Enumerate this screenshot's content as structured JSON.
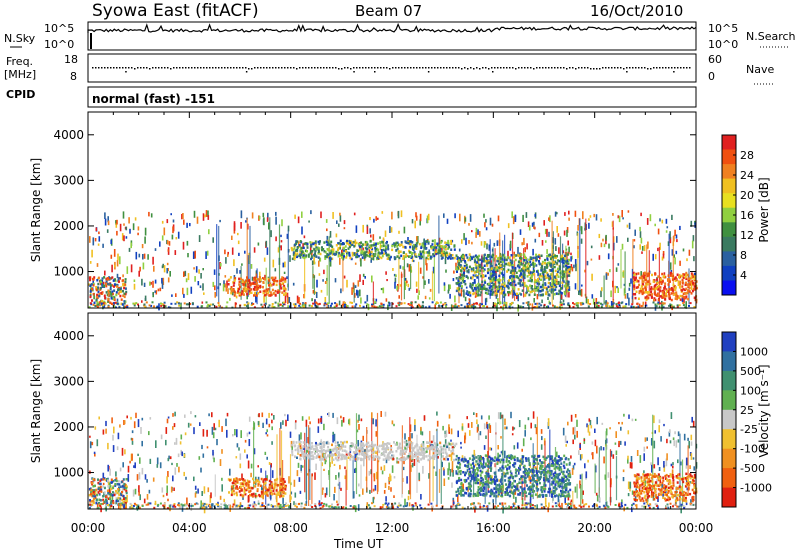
{
  "header": {
    "station": "Syowa East (fitACF)",
    "beam": "Beam 07",
    "date": "16/Oct/2010"
  },
  "panels": {
    "nsky_label": "N.Sky",
    "nsearch_label": "N.Search",
    "freq_label_line1": "Freq.",
    "freq_label_line2": "[MHz]",
    "nave_label": "Nave",
    "cpid_label": "CPID",
    "cpid_value": "normal (fast) -151",
    "noise_ticks": [
      "10^5",
      "10^0"
    ],
    "freq_ticks": [
      "18",
      "8"
    ],
    "nave_ticks": [
      "60",
      "0"
    ]
  },
  "chart_data": [
    {
      "type": "heatmap",
      "quantity": "Power",
      "ylabel": "Slant Range [km]",
      "ylim": [
        200,
        4500
      ],
      "y_ticks": [
        "4000",
        "3000",
        "2000",
        "1000"
      ],
      "x_ticks": [
        "00:00",
        "04:00",
        "08:00",
        "12:00",
        "16:00",
        "20:00",
        "00:00"
      ],
      "colorbar_label": "Power [dB]",
      "colorbar_ticks": [
        "28",
        "24",
        "20",
        "16",
        "12",
        "8",
        "4"
      ],
      "colorbar_colors": [
        "#e02020",
        "#f05010",
        "#f08020",
        "#f0c020",
        "#e8e020",
        "#90d040",
        "#409040",
        "#3a7a60",
        "#2a60a0",
        "#1040c0",
        "#0a10f0"
      ],
      "echo_regions": [
        {
          "t": [
            0.0,
            1.5
          ],
          "r": [
            300,
            900
          ],
          "level": "mixed"
        },
        {
          "t": [
            5.5,
            7.8
          ],
          "r": [
            500,
            900
          ],
          "level": "high"
        },
        {
          "t": [
            8.0,
            14.5
          ],
          "r": [
            1300,
            1700
          ],
          "level": "medium"
        },
        {
          "t": [
            14.5,
            19.0
          ],
          "r": [
            500,
            1400
          ],
          "level": "medium"
        },
        {
          "t": [
            21.5,
            24.0
          ],
          "r": [
            400,
            1000
          ],
          "level": "high"
        }
      ]
    },
    {
      "type": "heatmap",
      "quantity": "Velocity",
      "ylabel": "Slant Range [km]",
      "xlabel": "Time UT",
      "ylim": [
        200,
        4500
      ],
      "y_ticks": [
        "4000",
        "3000",
        "2000",
        "1000"
      ],
      "x_ticks": [
        "00:00",
        "04:00",
        "08:00",
        "12:00",
        "16:00",
        "20:00",
        "00:00"
      ],
      "colorbar_label": "Velocity [m s⁻¹]",
      "colorbar_ticks": [
        "1000",
        "500",
        "100",
        "25",
        "-25",
        "-100",
        "-500",
        "-1000"
      ],
      "colorbar_colors": [
        "#2040c0",
        "#3070a0",
        "#409070",
        "#60b050",
        "#c8c8c8",
        "#f0c030",
        "#f09020",
        "#f06010",
        "#e02010"
      ],
      "echo_regions": [
        {
          "t": [
            0.0,
            1.5
          ],
          "r": [
            300,
            900
          ],
          "level": "mixed"
        },
        {
          "t": [
            5.5,
            7.8
          ],
          "r": [
            500,
            900
          ],
          "level": "negative"
        },
        {
          "t": [
            8.0,
            14.5
          ],
          "r": [
            1300,
            1700
          ],
          "level": "ground"
        },
        {
          "t": [
            14.5,
            19.0
          ],
          "r": [
            500,
            1400
          ],
          "level": "positive"
        },
        {
          "t": [
            21.5,
            24.0
          ],
          "r": [
            400,
            1000
          ],
          "level": "negative"
        }
      ]
    }
  ]
}
